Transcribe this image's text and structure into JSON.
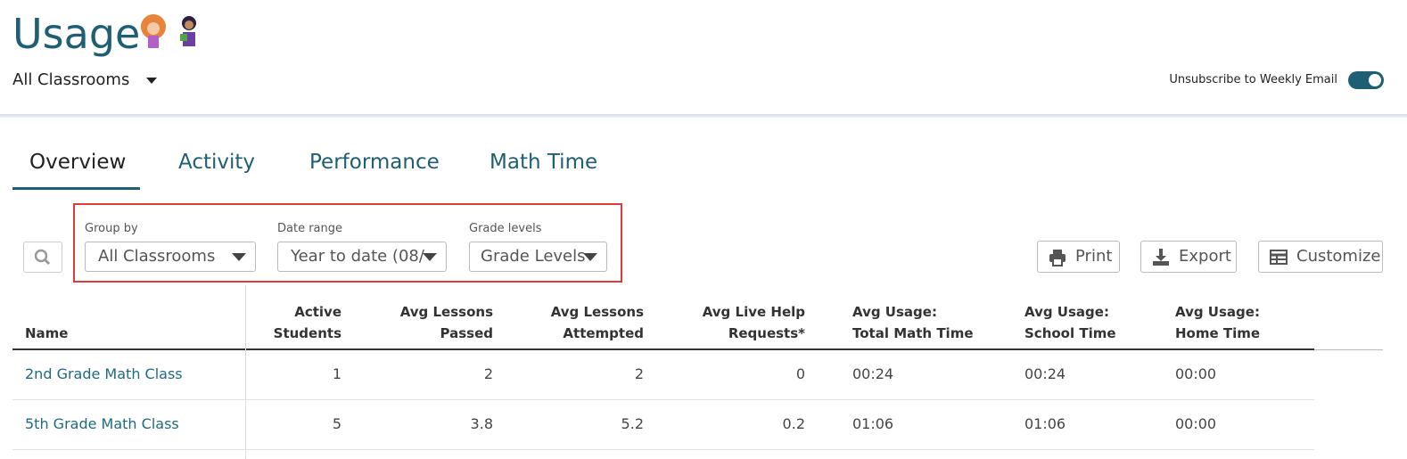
{
  "header": {
    "title": "Usage",
    "classroom_select": "All Classrooms",
    "toggle_label": "Unsubscribe to Weekly Email"
  },
  "tabs": [
    "Overview",
    "Activity",
    "Performance",
    "Math Time"
  ],
  "filters": [
    {
      "label": "Group by",
      "value": "All Classrooms"
    },
    {
      "label": "Date range",
      "value": "Year to date (08/"
    },
    {
      "label": "Grade levels",
      "value": "Grade Levels"
    }
  ],
  "buttons": [
    "Print",
    "Export",
    "Customize"
  ],
  "table": {
    "columns": [
      "Name",
      "Active Students",
      "Avg Lessons Passed",
      "Avg Lessons Attempted",
      "Avg Live Help Requests*",
      "Avg Usage: Total Math Time",
      "Avg Usage: School Time",
      "Avg Usage: Home Time"
    ],
    "rows": [
      [
        "2nd Grade Math Class",
        1,
        2,
        2,
        0,
        "00:24",
        "00:24",
        "00:00"
      ],
      [
        "5th Grade Math Class",
        5,
        3.8,
        5.2,
        0.2,
        "01:06",
        "01:06",
        "00:00"
      ]
    ]
  }
}
